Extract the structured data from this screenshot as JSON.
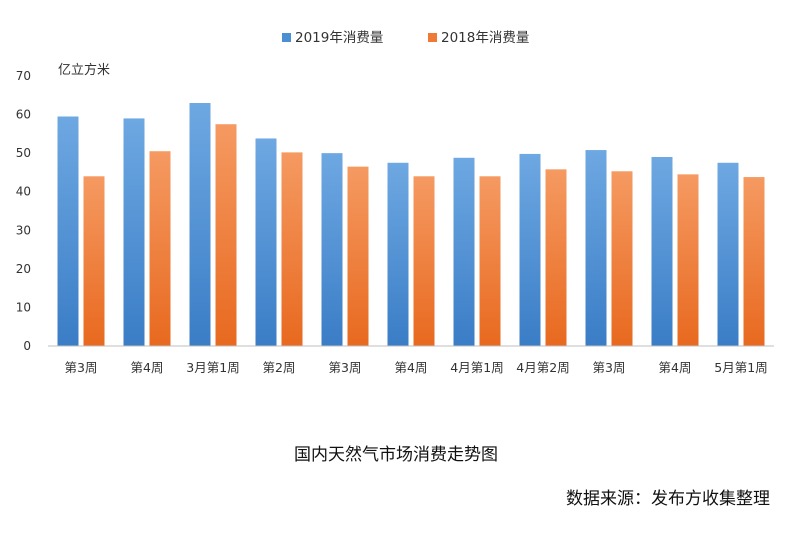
{
  "chart_data": {
    "type": "bar",
    "title": "国内天然气市场消费走势图",
    "source": "数据来源：发布方收集整理",
    "ylabel": "亿立方米",
    "ylim": [
      0,
      70
    ],
    "yticks": [
      0,
      10,
      20,
      30,
      40,
      50,
      60,
      70
    ],
    "legend_position": "top-center",
    "grid": false,
    "categories": [
      "第3周",
      "第4周",
      "3月第1周",
      "第2周",
      "第3周",
      "第4周",
      "4月第1周",
      "4月第2周",
      "第3周",
      "第4周",
      "5月第1周"
    ],
    "series": [
      {
        "name": "2019年消费量",
        "color": "#4a8fd4",
        "values": [
          59.5,
          59,
          63,
          53.8,
          50,
          47.5,
          48.8,
          49.8,
          50.8,
          49,
          47.5
        ]
      },
      {
        "name": "2018年消费量",
        "color": "#ee7a35",
        "values": [
          44,
          50.5,
          57.5,
          50.2,
          46.5,
          44,
          44,
          45.8,
          45.3,
          44.5,
          43.8
        ]
      }
    ]
  }
}
